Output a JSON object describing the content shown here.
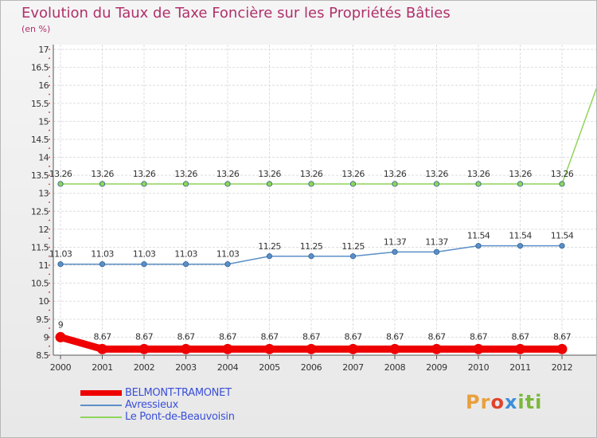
{
  "title": "Evolution du Taux de Taxe Foncière sur les Propriétés Bâties",
  "unit_label": "(en %)",
  "brand": {
    "parts": [
      "Pr",
      "o",
      "x",
      "iti"
    ]
  },
  "chart_data": {
    "type": "line",
    "title": "Evolution du Taux de Taxe Foncière sur les Propriétés Bâties",
    "xlabel": "",
    "ylabel": "(en %)",
    "ylim": [
      8.5,
      17
    ],
    "y_ticks": [
      "8.5",
      "9",
      "9.5",
      "10",
      "10.5",
      "11",
      "11.5",
      "12",
      "12.5",
      "13",
      "13.5",
      "14",
      "14.5",
      "15",
      "15.5",
      "16",
      "16.5",
      "17"
    ],
    "categories": [
      "2000",
      "2001",
      "2002",
      "2003",
      "2004",
      "2005",
      "2006",
      "2007",
      "2008",
      "2009",
      "2010",
      "2011",
      "2012"
    ],
    "grid": true,
    "legend_position": "bottom-left",
    "series": [
      {
        "name": "BELMONT-TRAMONET",
        "color": "#ee0000",
        "values": [
          9,
          8.67,
          8.67,
          8.67,
          8.67,
          8.67,
          8.67,
          8.67,
          8.67,
          8.67,
          8.67,
          8.67,
          8.67
        ],
        "labels": [
          "9",
          "8.67",
          "8.67",
          "8.67",
          "8.67",
          "8.67",
          "8.67",
          "8.67",
          "8.67",
          "8.67",
          "8.67",
          "8.67",
          "8.67"
        ]
      },
      {
        "name": "Avressieux",
        "color": "#5b8fc7",
        "values": [
          11.03,
          11.03,
          11.03,
          11.03,
          11.03,
          11.25,
          11.25,
          11.25,
          11.37,
          11.37,
          11.54,
          11.54,
          11.54
        ],
        "labels": [
          "11.03",
          "11.03",
          "11.03",
          "11.03",
          "11.03",
          "11.25",
          "11.25",
          "11.25",
          "11.37",
          "11.37",
          "11.54",
          "11.54",
          "11.54"
        ]
      },
      {
        "name": "Le Pont-de-Beauvoisin",
        "color": "#8fd45a",
        "values": [
          13.26,
          13.26,
          13.26,
          13.26,
          13.26,
          13.26,
          13.26,
          13.26,
          13.26,
          13.26,
          13.26,
          13.26,
          13.26
        ],
        "labels": [
          "13.26",
          "13.26",
          "13.26",
          "13.26",
          "13.26",
          "13.26",
          "13.26",
          "13.26",
          "13.26",
          "13.26",
          "13.26",
          "13.26",
          "13.26"
        ],
        "continuation_value": 15.9
      }
    ]
  }
}
